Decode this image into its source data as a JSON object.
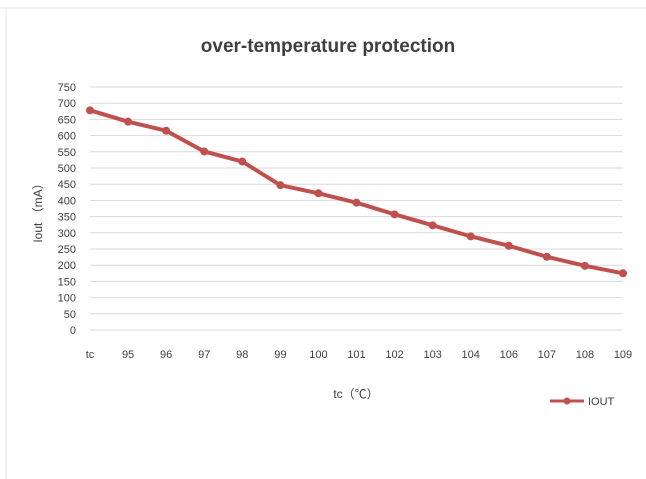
{
  "chart_data": {
    "type": "line",
    "title": "over-temperature protection",
    "xlabel": "tc（℃）",
    "ylabel": "Iout （mA）",
    "categories": [
      "tc",
      "95",
      "96",
      "97",
      "98",
      "99",
      "100",
      "101",
      "102",
      "103",
      "104",
      "106",
      "107",
      "108",
      "109"
    ],
    "series": [
      {
        "name": "IOUT",
        "values": [
          678,
          643,
          615,
          551,
          520,
          447,
          422,
          393,
          357,
          323,
          289,
          260,
          226,
          198,
          175
        ],
        "color": "#c0504d"
      }
    ],
    "ylim": [
      0,
      750
    ],
    "yticks": [
      0,
      50,
      100,
      150,
      200,
      250,
      300,
      350,
      400,
      450,
      500,
      550,
      600,
      650,
      700,
      750
    ],
    "grid": true,
    "legend_position": "bottom-right",
    "gridline_color": "#d9d9d9"
  }
}
